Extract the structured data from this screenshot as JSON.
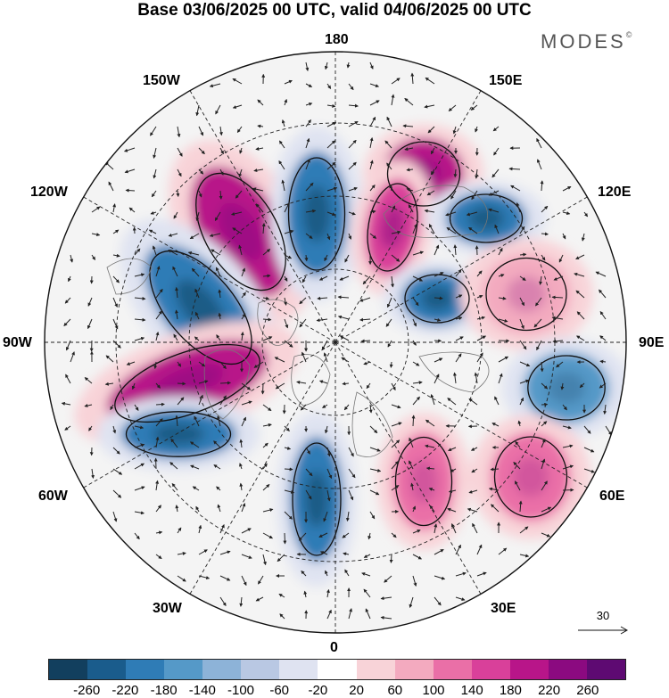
{
  "title": "Base 03/06/2025 00 UTC, valid 04/06/2025 00 UTC",
  "brand": "MODES",
  "brand_mark": "©",
  "longitude_labels": {
    "top": "180",
    "bottom": "0",
    "left": "90W",
    "right": "90E",
    "upper_left_1": "150W",
    "upper_left_2": "120W",
    "upper_right_1": "150E",
    "upper_right_2": "120E",
    "lower_left_1": "60W",
    "lower_left_2": "30W",
    "lower_right_1": "60E",
    "lower_right_2": "30E"
  },
  "vector_scale": {
    "value": "30"
  },
  "colorbar": {
    "tick_labels": [
      "-260",
      "-220",
      "-180",
      "-140",
      "-100",
      "-60",
      "-20",
      "20",
      "60",
      "100",
      "140",
      "180",
      "220",
      "260"
    ],
    "colors": [
      "#123f5e",
      "#1a5c8c",
      "#2f7cb6",
      "#5599c8",
      "#8db3d8",
      "#b9c8e3",
      "#dfe3f1",
      "#ffffff",
      "#f8d3d8",
      "#f3aabf",
      "#ea6fa7",
      "#d9409a",
      "#b81589",
      "#8b0a80",
      "#5e0a72"
    ]
  },
  "map": {
    "projection": "north-polar-stereographic",
    "field": "anomaly with wind vectors",
    "anomaly_centers": [
      {
        "name": "pacific-positive-1",
        "sign": "positive",
        "strength": 220
      },
      {
        "name": "pacific-negative-1",
        "sign": "negative",
        "strength": 180
      },
      {
        "name": "siberia-positive",
        "sign": "positive",
        "strength": 220
      },
      {
        "name": "siberia-positive-2",
        "sign": "positive",
        "strength": 180
      },
      {
        "name": "east-siberia-negative",
        "sign": "negative",
        "strength": 180
      },
      {
        "name": "canada-negative",
        "sign": "negative",
        "strength": 180
      },
      {
        "name": "north-america-positive",
        "sign": "positive",
        "strength": 220
      },
      {
        "name": "atlantic-negative-w",
        "sign": "negative",
        "strength": 180
      },
      {
        "name": "atlantic-negative-n",
        "sign": "negative",
        "strength": 180
      },
      {
        "name": "arctic-negative",
        "sign": "negative",
        "strength": 180
      },
      {
        "name": "asia-positive",
        "sign": "positive",
        "strength": 100
      },
      {
        "name": "asia-negative",
        "sign": "negative",
        "strength": 140
      },
      {
        "name": "europe-positive",
        "sign": "positive",
        "strength": 140
      },
      {
        "name": "middle-east-positive",
        "sign": "positive",
        "strength": 140
      }
    ]
  }
}
